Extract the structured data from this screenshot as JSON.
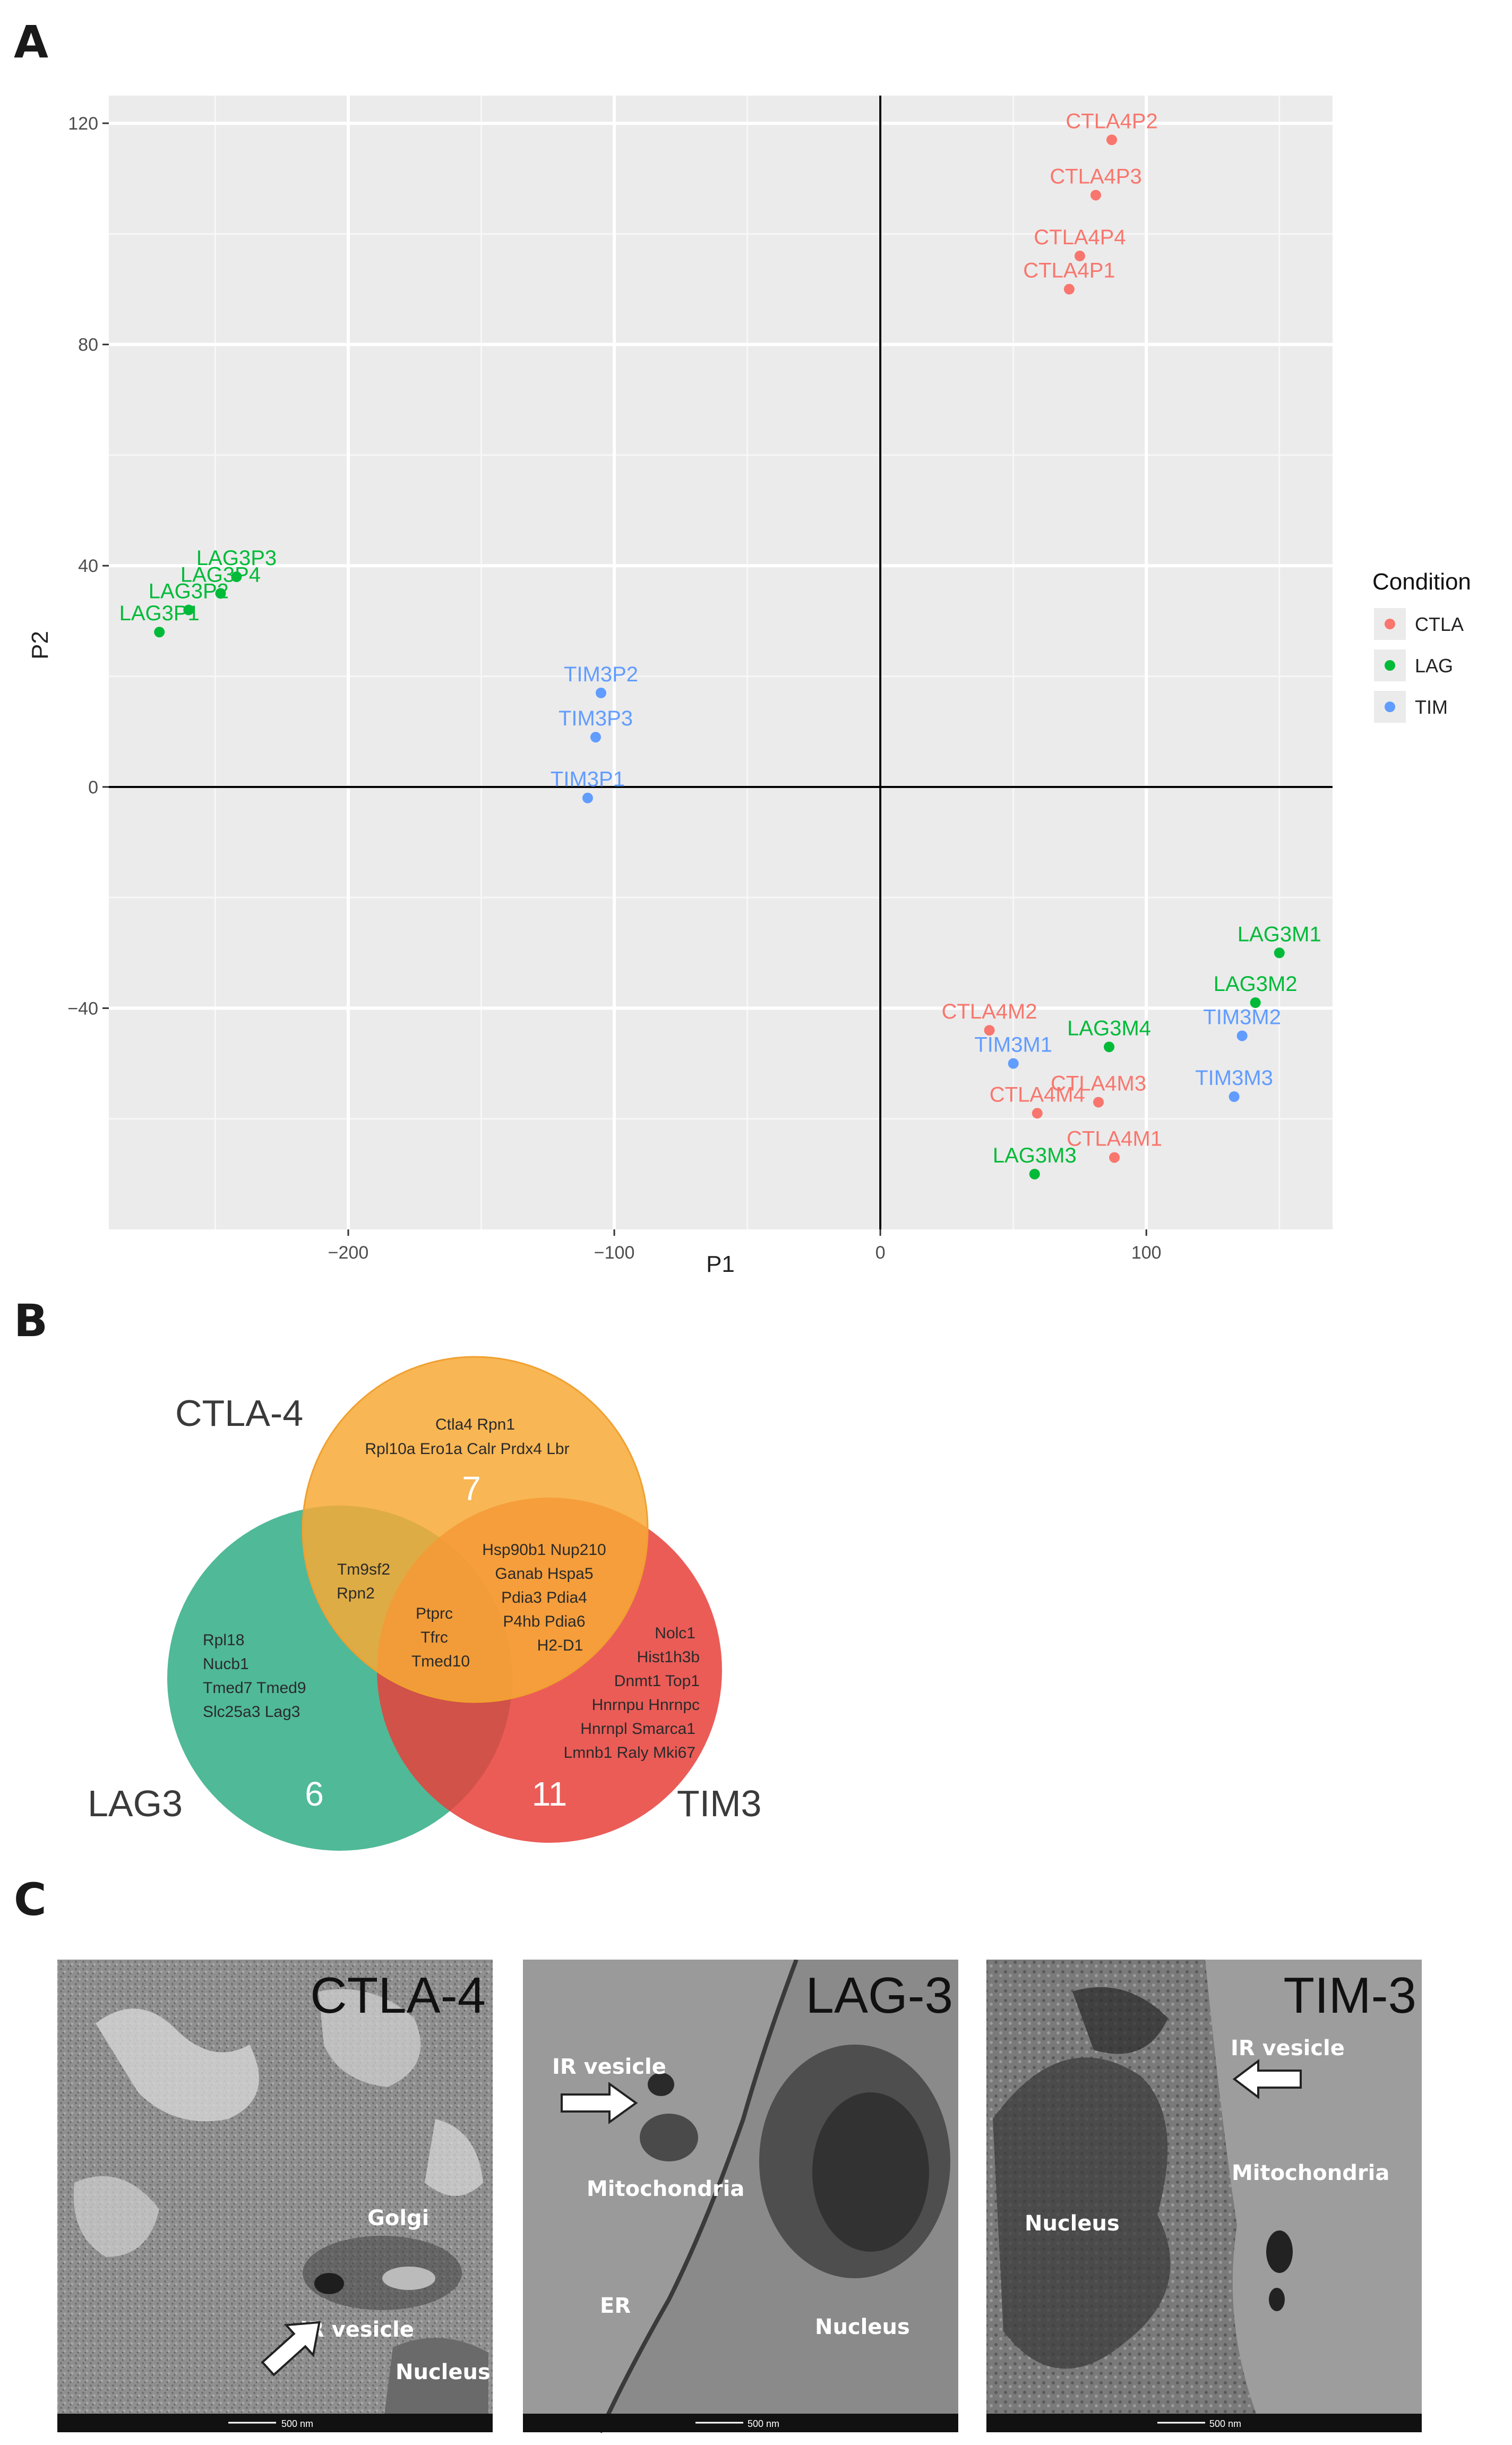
{
  "panels": {
    "a": "A",
    "b": "B",
    "c": "C"
  },
  "colors": {
    "CTLA": "#F8766D",
    "LAG": "#00BA38",
    "TIM": "#619CFF"
  },
  "chart_data": {
    "type": "scatter",
    "xlabel": "P1",
    "ylabel": "P2",
    "xlim": [
      -290,
      170
    ],
    "ylim": [
      -80,
      125
    ],
    "xticks": [
      -200,
      -100,
      0,
      100
    ],
    "yticks": [
      -40,
      0,
      40,
      80,
      120
    ],
    "xtick_labels": [
      "−200",
      "−100",
      "0",
      "100"
    ],
    "ytick_labels": [
      "−40",
      "0",
      "40",
      "80",
      "120"
    ],
    "legend_title": "Condition",
    "legend": [
      {
        "name": "CTLA",
        "color": "#F8766D"
      },
      {
        "name": "LAG",
        "color": "#00BA38"
      },
      {
        "name": "TIM",
        "color": "#619CFF"
      }
    ],
    "points": [
      {
        "label": "CTLA4P2",
        "group": "CTLA",
        "x": 87,
        "y": 117
      },
      {
        "label": "CTLA4P3",
        "group": "CTLA",
        "x": 81,
        "y": 107
      },
      {
        "label": "CTLA4P4",
        "group": "CTLA",
        "x": 75,
        "y": 96
      },
      {
        "label": "CTLA4P1",
        "group": "CTLA",
        "x": 71,
        "y": 90
      },
      {
        "label": "LAG3P3",
        "group": "LAG",
        "x": -242,
        "y": 38
      },
      {
        "label": "LAG3P4",
        "group": "LAG",
        "x": -248,
        "y": 35
      },
      {
        "label": "LAG3P2",
        "group": "LAG",
        "x": -260,
        "y": 32
      },
      {
        "label": "LAG3P1",
        "group": "LAG",
        "x": -271,
        "y": 28
      },
      {
        "label": "TIM3P2",
        "group": "TIM",
        "x": -105,
        "y": 17
      },
      {
        "label": "TIM3P3",
        "group": "TIM",
        "x": -107,
        "y": 9
      },
      {
        "label": "TIM3P1",
        "group": "TIM",
        "x": -110,
        "y": -2
      },
      {
        "label": "LAG3M1",
        "group": "LAG",
        "x": 150,
        "y": -30
      },
      {
        "label": "LAG3M2",
        "group": "LAG",
        "x": 141,
        "y": -39
      },
      {
        "label": "TIM3M2",
        "group": "TIM",
        "x": 136,
        "y": -45
      },
      {
        "label": "CTLA4M2",
        "group": "CTLA",
        "x": 41,
        "y": -44
      },
      {
        "label": "LAG3M4",
        "group": "LAG",
        "x": 86,
        "y": -47
      },
      {
        "label": "TIM3M1",
        "group": "TIM",
        "x": 50,
        "y": -50
      },
      {
        "label": "TIM3M3",
        "group": "TIM",
        "x": 133,
        "y": -56
      },
      {
        "label": "CTLA4M4",
        "group": "CTLA",
        "x": 59,
        "y": -59
      },
      {
        "label": "CTLA4M3",
        "group": "CTLA",
        "x": 82,
        "y": -57
      },
      {
        "label": "CTLA4M1",
        "group": "CTLA",
        "x": 88,
        "y": -67
      },
      {
        "label": "LAG3M3",
        "group": "LAG",
        "x": 58,
        "y": -70
      }
    ]
  },
  "venn": {
    "labels": {
      "ctla": "CTLA-4",
      "lag": "LAG3",
      "tim": "TIM3"
    },
    "counts": {
      "ctla": "7",
      "lag": "6",
      "tim": "11"
    },
    "ctla_only": [
      "Ctla4  Rpn1",
      "Rpl10a  Ero1a  Calr  Prdx4  Lbr"
    ],
    "ctla_lag": [
      "Tm9sf2",
      "Rpn2"
    ],
    "ctla_tim": [
      "Hsp90b1 Nup210",
      "Ganab  Hspa5",
      "Pdia3 Pdia4",
      "P4hb Pdia6",
      "H2-D1"
    ],
    "all_three": [
      "Ptprc",
      "Tfrc",
      "Tmed10"
    ],
    "lag_only": [
      "Rpl18",
      "Nucb1",
      "Tmed7  Tmed9",
      "Slc25a3 Lag3"
    ],
    "tim_only": [
      "Nolc1",
      "Hist1h3b",
      "Dnmt1  Top1",
      "Hnrnpu  Hnrnpc",
      "Hnrnpl  Smarca1",
      "Lmnb1  Raly  Mki67"
    ]
  },
  "em": [
    {
      "title": "CTLA-4",
      "labels": [
        "Golgi",
        "IR vesicle",
        "Nucleus"
      ],
      "scale": "500 nm"
    },
    {
      "title": "LAG-3",
      "labels": [
        "IR vesicle",
        "Mitochondria",
        "ER",
        "Nucleus"
      ],
      "scale": "500 nm"
    },
    {
      "title": "TIM-3",
      "labels": [
        "IR vesicle",
        "Mitochondria",
        "Nucleus"
      ],
      "scale": "500 nm"
    }
  ]
}
